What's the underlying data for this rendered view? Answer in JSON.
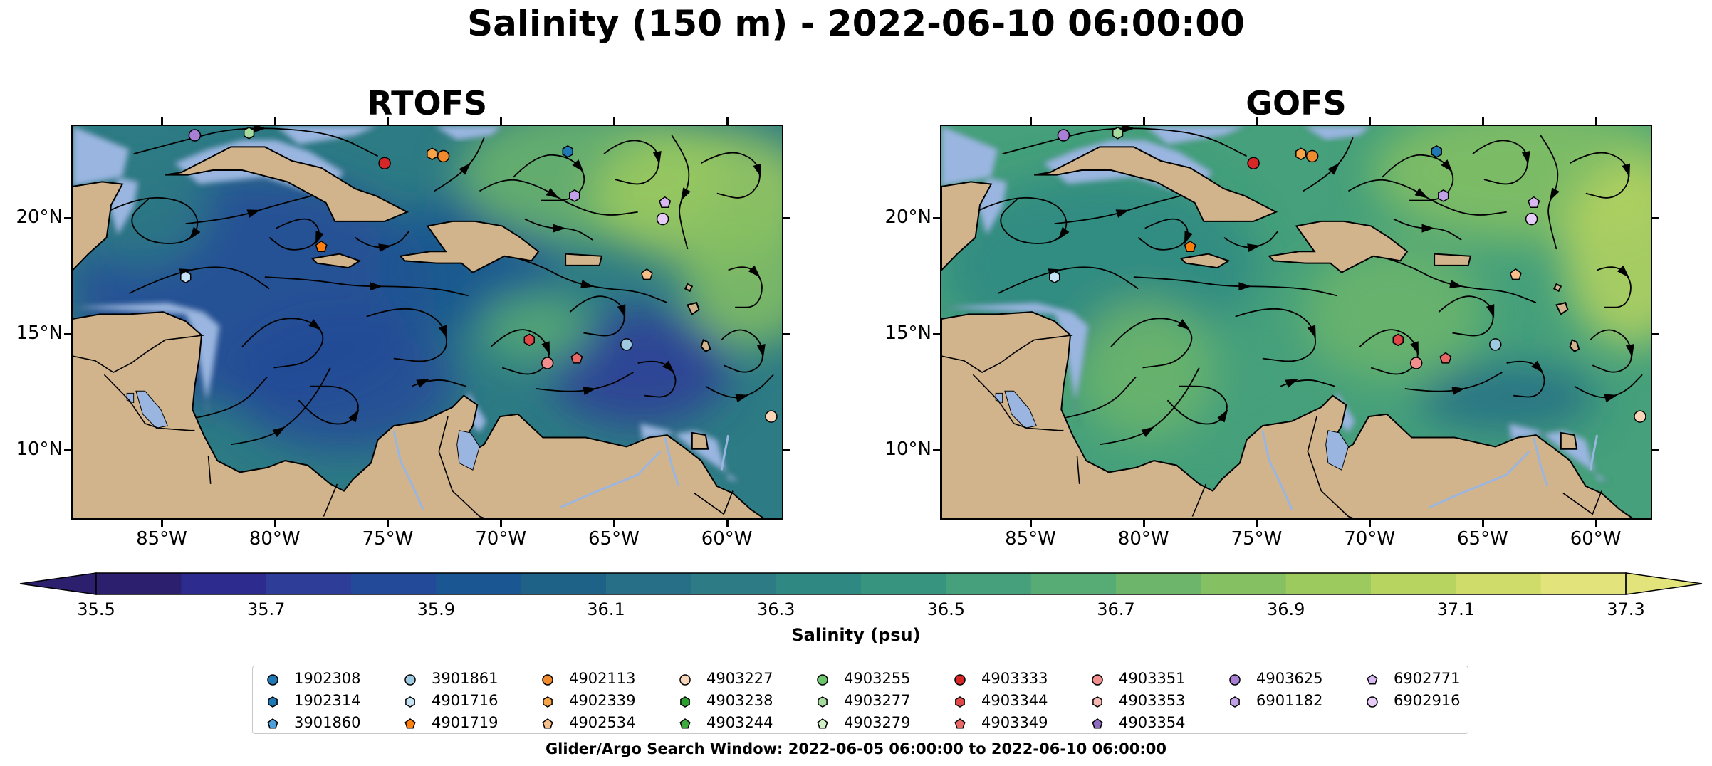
{
  "title": "Salinity (150 m) - 2022-06-10 06:00:00",
  "panels": [
    {
      "title": "RTOFS",
      "key": "rtofs"
    },
    {
      "title": "GOFS",
      "key": "gofs"
    }
  ],
  "axes": {
    "lon_range": [
      -89,
      -57.5
    ],
    "lat_range": [
      7,
      24
    ],
    "xticks": [
      {
        "value": -85,
        "label": "85°W"
      },
      {
        "value": -80,
        "label": "80°W"
      },
      {
        "value": -75,
        "label": "75°W"
      },
      {
        "value": -70,
        "label": "70°W"
      },
      {
        "value": -65,
        "label": "65°W"
      },
      {
        "value": -60,
        "label": "60°W"
      }
    ],
    "yticks": [
      {
        "value": 20,
        "label": "20°N"
      },
      {
        "value": 15,
        "label": "15°N"
      },
      {
        "value": 10,
        "label": "10°N"
      }
    ]
  },
  "colorbar": {
    "label": "Salinity (psu)",
    "min": 35.5,
    "max": 37.3,
    "step": 0.1,
    "extend": "both",
    "tick_labels": [
      "35.5",
      "35.7",
      "35.9",
      "36.1",
      "36.3",
      "36.5",
      "36.7",
      "36.9",
      "37.1",
      "37.3"
    ],
    "colors": [
      "#2b1f6e",
      "#2e2b8e",
      "#2d3d98",
      "#234a98",
      "#1a5691",
      "#1f6288",
      "#266f86",
      "#2d7b84",
      "#2f8882",
      "#37947f",
      "#45a07b",
      "#57ab74",
      "#6db56b",
      "#85c063",
      "#9cca5f",
      "#b6d45f",
      "#cfdc69",
      "#e2e47b"
    ]
  },
  "legend": {
    "columns": [
      [
        {
          "id": "1902308",
          "marker": "circle",
          "color": "#1f77b4"
        },
        {
          "id": "1902314",
          "marker": "hexagon",
          "color": "#1f77b4"
        },
        {
          "id": "3901860",
          "marker": "pentagon",
          "color": "#4c9fd8"
        }
      ],
      [
        {
          "id": "3901861",
          "marker": "circle",
          "color": "#9ecae1"
        },
        {
          "id": "4901716",
          "marker": "hexagon",
          "color": "#c6e2f5"
        },
        {
          "id": "4901719",
          "marker": "pentagon",
          "color": "#ff7f0e"
        }
      ],
      [
        {
          "id": "4902113",
          "marker": "circle",
          "color": "#f08a2c"
        },
        {
          "id": "4902339",
          "marker": "hexagon",
          "color": "#f7a448"
        },
        {
          "id": "4902534",
          "marker": "pentagon",
          "color": "#f7c08a"
        }
      ],
      [
        {
          "id": "4903227",
          "marker": "circle",
          "color": "#f9d6b8"
        },
        {
          "id": "4903238",
          "marker": "hexagon",
          "color": "#2ca02c"
        },
        {
          "id": "4903244",
          "marker": "pentagon",
          "color": "#3caa3c"
        }
      ],
      [
        {
          "id": "4903255",
          "marker": "circle",
          "color": "#6cc46c"
        },
        {
          "id": "4903277",
          "marker": "hexagon",
          "color": "#a6dba0"
        },
        {
          "id": "4903279",
          "marker": "pentagon",
          "color": "#d0f0c8"
        }
      ],
      [
        {
          "id": "4903333",
          "marker": "circle",
          "color": "#d62728"
        },
        {
          "id": "4903344",
          "marker": "hexagon",
          "color": "#e04848"
        },
        {
          "id": "4903349",
          "marker": "pentagon",
          "color": "#e86868"
        }
      ],
      [
        {
          "id": "4903351",
          "marker": "circle",
          "color": "#f28e8e"
        },
        {
          "id": "4903353",
          "marker": "hexagon",
          "color": "#f6b8b0"
        },
        {
          "id": "4903354",
          "marker": "pentagon",
          "color": "#8e6bbf"
        }
      ],
      [
        {
          "id": "4903625",
          "marker": "circle",
          "color": "#a97fd6"
        },
        {
          "id": "6901182",
          "marker": "hexagon",
          "color": "#c0a0e6"
        }
      ],
      [
        {
          "id": "6902771",
          "marker": "pentagon",
          "color": "#d8b8f0"
        },
        {
          "id": "6902916",
          "marker": "circle",
          "color": "#e6ccf6"
        }
      ]
    ]
  },
  "floats": [
    {
      "id": "4903625",
      "lon": -83.6,
      "lat": 23.6
    },
    {
      "id": "4903277",
      "lon": -81.2,
      "lat": 23.7
    },
    {
      "id": "4903333",
      "lon": -75.2,
      "lat": 22.4
    },
    {
      "id": "4902339",
      "lon": -73.1,
      "lat": 22.8
    },
    {
      "id": "4902113",
      "lon": -72.6,
      "lat": 22.7
    },
    {
      "id": "1902314",
      "lon": -67.1,
      "lat": 22.9
    },
    {
      "id": "6901182",
      "lon": -66.8,
      "lat": 21.0
    },
    {
      "id": "6902771",
      "lon": -62.8,
      "lat": 20.7
    },
    {
      "id": "6902916",
      "lon": -62.9,
      "lat": 20.0
    },
    {
      "id": "4901719",
      "lon": -78.0,
      "lat": 18.8
    },
    {
      "id": "4901716",
      "lon": -84.0,
      "lat": 17.5
    },
    {
      "id": "4902534",
      "lon": -63.6,
      "lat": 17.6
    },
    {
      "id": "4903344",
      "lon": -68.8,
      "lat": 14.8
    },
    {
      "id": "4903351",
      "lon": -68.0,
      "lat": 13.8
    },
    {
      "id": "4903349",
      "lon": -66.7,
      "lat": 14.0
    },
    {
      "id": "3901861",
      "lon": -64.5,
      "lat": 14.6
    },
    {
      "id": "4903227",
      "lon": -58.1,
      "lat": 11.5
    }
  ],
  "search_window": "Glider/Argo Search Window: 2022-06-05 06:00:00 to 2022-06-10 06:00:00"
}
